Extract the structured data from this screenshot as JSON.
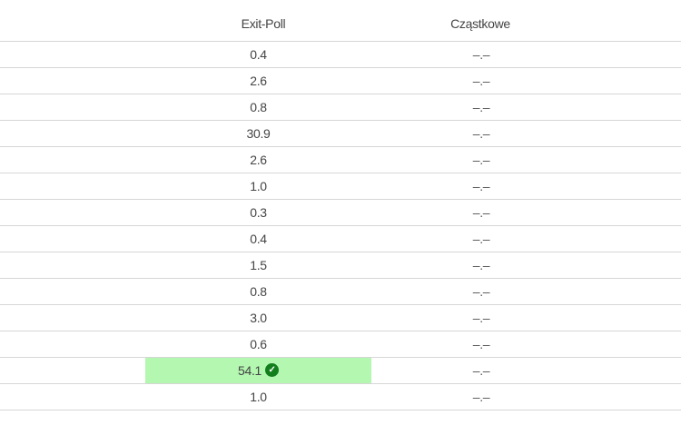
{
  "header": {
    "exit_poll": "Exit-Poll",
    "partial": "Cząstkowe"
  },
  "rows": [
    {
      "exit_poll": "0.4",
      "partial": "–.–"
    },
    {
      "exit_poll": "2.6",
      "partial": "–.–"
    },
    {
      "exit_poll": "0.8",
      "partial": "–.–"
    },
    {
      "exit_poll": "30.9",
      "partial": "–.–"
    },
    {
      "exit_poll": "2.6",
      "partial": "–.–"
    },
    {
      "exit_poll": "1.0",
      "partial": "–.–"
    },
    {
      "exit_poll": "0.3",
      "partial": "–.–"
    },
    {
      "exit_poll": "0.4",
      "partial": "–.–"
    },
    {
      "exit_poll": "1.5",
      "partial": "–.–"
    },
    {
      "exit_poll": "0.8",
      "partial": "–.–"
    },
    {
      "exit_poll": "3.0",
      "partial": "–.–"
    },
    {
      "exit_poll": "0.6",
      "partial": "–.–"
    },
    {
      "exit_poll": "54.1",
      "partial": "–.–",
      "winner": true,
      "icon": "check-circle-icon"
    },
    {
      "exit_poll": "1.0",
      "partial": "–.–"
    }
  ],
  "colors": {
    "winner_bg": "#b3f7b0",
    "check": "#137f1c"
  }
}
